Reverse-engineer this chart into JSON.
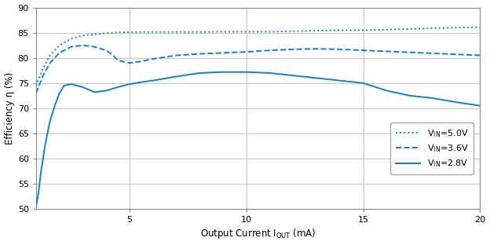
{
  "title": "",
  "xlabel_main": "Output Current I",
  "xlabel_sub": "OUT",
  "xlabel_end": " (mA)",
  "ylabel": "Efficiency η (%)",
  "xlim": [
    1,
    20
  ],
  "ylim": [
    50,
    90
  ],
  "yticks": [
    50,
    55,
    60,
    65,
    70,
    75,
    80,
    85,
    90
  ],
  "xticks": [
    5,
    10,
    15,
    20
  ],
  "line_color": "#1a7fbf",
  "background_color": "#ffffff",
  "grid_color": "#c8c8c8",
  "vin50_x": [
    1.0,
    1.3,
    1.6,
    2.0,
    2.5,
    3.0,
    3.5,
    4.0,
    4.5,
    5.0,
    6.0,
    7.0,
    8.0,
    9.0,
    10.0,
    11.0,
    12.0,
    13.0,
    14.0,
    15.0,
    16.0,
    17.0,
    18.0,
    19.0,
    20.0
  ],
  "vin50_y": [
    74.5,
    78.0,
    80.5,
    82.5,
    83.8,
    84.4,
    84.7,
    84.9,
    85.05,
    85.1,
    85.15,
    85.15,
    85.15,
    85.2,
    85.2,
    85.2,
    85.3,
    85.4,
    85.5,
    85.5,
    85.6,
    85.75,
    85.9,
    86.0,
    86.1
  ],
  "vin36_x": [
    1.0,
    1.3,
    1.6,
    2.0,
    2.5,
    3.0,
    3.5,
    4.0,
    4.3,
    4.5,
    5.0,
    5.5,
    6.0,
    7.0,
    8.0,
    9.0,
    10.0,
    11.0,
    12.0,
    13.0,
    14.0,
    15.0,
    16.0,
    17.0,
    18.0,
    19.0,
    20.0
  ],
  "vin36_y": [
    73.0,
    76.5,
    79.0,
    81.0,
    82.2,
    82.5,
    82.2,
    81.5,
    80.5,
    79.5,
    79.0,
    79.3,
    79.8,
    80.5,
    80.8,
    81.0,
    81.2,
    81.5,
    81.7,
    81.8,
    81.7,
    81.5,
    81.3,
    81.1,
    80.9,
    80.7,
    80.5
  ],
  "vin28_x": [
    1.0,
    1.1,
    1.2,
    1.4,
    1.6,
    1.8,
    2.0,
    2.2,
    2.5,
    3.0,
    3.2,
    3.5,
    4.0,
    4.5,
    5.0,
    5.5,
    6.0,
    7.0,
    8.0,
    9.0,
    10.0,
    11.0,
    12.0,
    13.0,
    14.0,
    15.0,
    16.0,
    17.0,
    18.0,
    19.0,
    20.0
  ],
  "vin28_y": [
    50.5,
    53.0,
    57.0,
    63.0,
    67.5,
    70.5,
    73.0,
    74.5,
    74.8,
    74.2,
    73.8,
    73.2,
    73.5,
    74.2,
    74.8,
    75.2,
    75.5,
    76.3,
    77.0,
    77.2,
    77.2,
    77.0,
    76.5,
    76.0,
    75.5,
    75.0,
    73.5,
    72.5,
    72.0,
    71.2,
    70.5
  ]
}
